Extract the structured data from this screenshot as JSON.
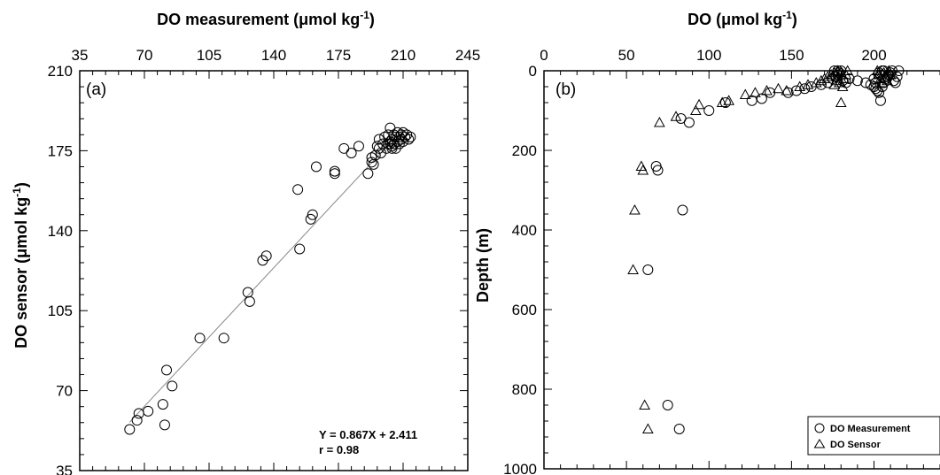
{
  "chart_data": [
    {
      "type": "scatter",
      "panel_label": "(a)",
      "xlabel": "DO measurement (μmol kg",
      "xlabel_sup": "-1",
      "xlabel_end": ")",
      "ylabel": "DO sensor (μmol kg",
      "ylabel_sup": "-1",
      "ylabel_end": ")",
      "xlim": [
        35,
        245
      ],
      "ylim": [
        35,
        210
      ],
      "xticks": [
        35,
        70,
        105,
        140,
        175,
        210,
        245
      ],
      "yticks": [
        35,
        70,
        105,
        140,
        175,
        210
      ],
      "x_axis_position": "top",
      "equation_text": "Y = 0.867X + 2.411",
      "r_text": "r  = 0.98",
      "fit_line": {
        "slope": 0.867,
        "intercept": 2.411,
        "x_range": [
          62,
          210
        ]
      },
      "series": [
        {
          "marker": "circle",
          "points": [
            [
              62,
              53
            ],
            [
              66,
              57
            ],
            [
              67,
              60
            ],
            [
              72,
              61
            ],
            [
              80,
              64
            ],
            [
              81,
              55
            ],
            [
              82,
              79
            ],
            [
              85,
              72
            ],
            [
              100,
              93
            ],
            [
              113,
              93
            ],
            [
              126,
              113
            ],
            [
              127,
              109
            ],
            [
              134,
              127
            ],
            [
              136,
              129
            ],
            [
              154,
              132
            ],
            [
              153,
              158
            ],
            [
              160,
              145
            ],
            [
              161,
              147
            ],
            [
              163,
              168
            ],
            [
              173,
              166
            ],
            [
              173,
              165
            ],
            [
              178,
              176
            ],
            [
              182,
              174
            ],
            [
              186,
              177
            ],
            [
              191,
              165
            ],
            [
              193,
              170
            ],
            [
              193,
              172
            ],
            [
              194,
              169
            ],
            [
              195,
              173
            ],
            [
              196,
              177
            ],
            [
              197,
              176
            ],
            [
              197,
              180
            ],
            [
              198,
              174
            ],
            [
              199,
              178
            ],
            [
              200,
              181
            ],
            [
              201,
              176
            ],
            [
              202,
              178
            ],
            [
              202,
              182
            ],
            [
              203,
              185
            ],
            [
              203,
              179
            ],
            [
              204,
              177
            ],
            [
              204,
              180
            ],
            [
              205,
              178
            ],
            [
              205,
              182
            ],
            [
              206,
              176
            ],
            [
              206,
              181
            ],
            [
              207,
              179
            ],
            [
              207,
              183
            ],
            [
              208,
              178
            ],
            [
              208,
              181
            ],
            [
              209,
              180
            ],
            [
              209,
              182
            ],
            [
              210,
              179
            ],
            [
              210,
              183
            ],
            [
              211,
              181
            ],
            [
              212,
              182
            ],
            [
              213,
              180
            ],
            [
              214,
              181
            ],
            [
              204,
              176
            ],
            [
              203,
              178
            ]
          ]
        }
      ]
    },
    {
      "type": "scatter",
      "panel_label": "(b)",
      "xlabel": "DO (μmol kg",
      "xlabel_sup": "-1",
      "xlabel_end": ")",
      "ylabel": "Depth (m)",
      "xlim": [
        0,
        240
      ],
      "ylim": [
        1000,
        0
      ],
      "xticks": [
        0,
        50,
        100,
        150,
        200
      ],
      "yticks": [
        0,
        200,
        400,
        600,
        800,
        1000
      ],
      "x_axis_position": "top",
      "legend_position": "bottom-right",
      "series": [
        {
          "name": "DO Measurement",
          "marker": "circle",
          "points": [
            [
              68,
              240
            ],
            [
              69,
              250
            ],
            [
              84,
              350
            ],
            [
              63,
              500
            ],
            [
              75,
              840
            ],
            [
              82,
              900
            ],
            [
              83,
              120
            ],
            [
              88,
              130
            ],
            [
              100,
              100
            ],
            [
              110,
              80
            ],
            [
              126,
              75
            ],
            [
              132,
              70
            ],
            [
              137,
              55
            ],
            [
              148,
              55
            ],
            [
              153,
              50
            ],
            [
              158,
              45
            ],
            [
              162,
              40
            ],
            [
              168,
              35
            ],
            [
              172,
              30
            ],
            [
              175,
              20
            ],
            [
              177,
              15
            ],
            [
              178,
              10
            ],
            [
              179,
              5
            ],
            [
              180,
              0
            ],
            [
              181,
              25
            ],
            [
              183,
              30
            ],
            [
              185,
              20
            ],
            [
              190,
              25
            ],
            [
              195,
              30
            ],
            [
              198,
              35
            ],
            [
              200,
              40
            ],
            [
              201,
              45
            ],
            [
              202,
              50
            ],
            [
              203,
              55
            ],
            [
              204,
              75
            ],
            [
              205,
              40
            ],
            [
              206,
              30
            ],
            [
              207,
              20
            ],
            [
              208,
              15
            ],
            [
              209,
              10
            ],
            [
              210,
              5
            ],
            [
              211,
              0
            ],
            [
              212,
              25
            ],
            [
              213,
              30
            ],
            [
              214,
              15
            ],
            [
              215,
              0
            ],
            [
              203,
              5
            ],
            [
              204,
              10
            ],
            [
              205,
              0
            ],
            [
              206,
              0
            ],
            [
              176,
              0
            ],
            [
              178,
              0
            ],
            [
              200,
              20
            ],
            [
              201,
              30
            ]
          ]
        },
        {
          "name": "DO Sensor",
          "marker": "triangle",
          "points": [
            [
              54,
              500
            ],
            [
              55,
              350
            ],
            [
              59,
              240
            ],
            [
              60,
              250
            ],
            [
              61,
              840
            ],
            [
              63,
              900
            ],
            [
              70,
              130
            ],
            [
              80,
              115
            ],
            [
              92,
              100
            ],
            [
              94,
              85
            ],
            [
              108,
              80
            ],
            [
              112,
              75
            ],
            [
              122,
              60
            ],
            [
              128,
              55
            ],
            [
              135,
              50
            ],
            [
              142,
              45
            ],
            [
              147,
              50
            ],
            [
              155,
              40
            ],
            [
              160,
              35
            ],
            [
              165,
              30
            ],
            [
              168,
              25
            ],
            [
              170,
              20
            ],
            [
              172,
              15
            ],
            [
              174,
              10
            ],
            [
              176,
              5
            ],
            [
              178,
              0
            ],
            [
              179,
              30
            ],
            [
              180,
              80
            ],
            [
              181,
              40
            ],
            [
              182,
              20
            ],
            [
              183,
              10
            ],
            [
              184,
              0
            ],
            [
              176,
              35
            ],
            [
              177,
              25
            ],
            [
              178,
              15
            ],
            [
              180,
              5
            ],
            [
              202,
              0
            ],
            [
              203,
              10
            ],
            [
              204,
              20
            ],
            [
              205,
              30
            ],
            [
              206,
              5
            ],
            [
              207,
              15
            ],
            [
              208,
              25
            ],
            [
              209,
              0
            ],
            [
              210,
              10
            ]
          ]
        }
      ]
    }
  ]
}
